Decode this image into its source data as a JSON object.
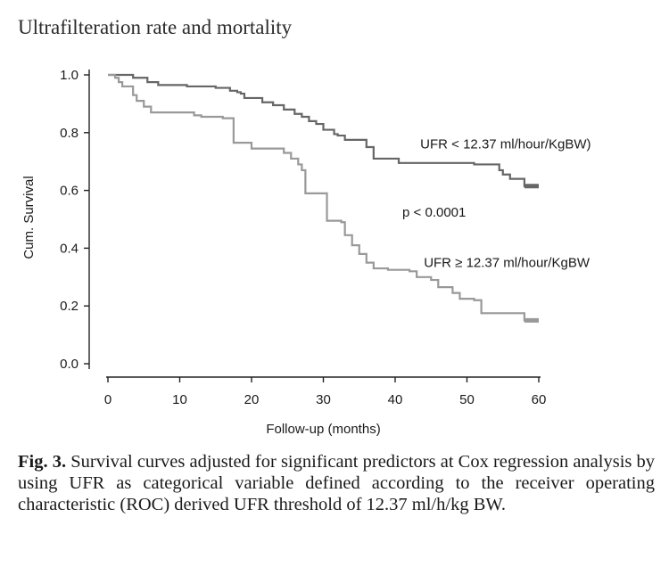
{
  "heading": "Ultrafilteration rate and mortality",
  "chart_data": {
    "type": "line",
    "title": "Ultrafilteration rate and mortality",
    "xlabel": "Follow-up (months)",
    "ylabel": "Cum. Survival",
    "xlim": [
      0,
      60
    ],
    "ylim": [
      0.0,
      1.0
    ],
    "xticks": [
      0,
      10,
      20,
      30,
      40,
      50,
      60
    ],
    "yticks": [
      0.0,
      0.2,
      0.4,
      0.6,
      0.8,
      1.0
    ],
    "xtick_labels": [
      "0",
      "10",
      "20",
      "30",
      "40",
      "50",
      "60"
    ],
    "ytick_labels": [
      "0.0",
      "0.2",
      "0.4",
      "0.6",
      "0.8",
      "1.0"
    ],
    "grid": false,
    "series": [
      {
        "name": "UFR < 12.37 ml/hour/KgBW)",
        "color": "#666666",
        "step": true,
        "points": [
          [
            0,
            1.0
          ],
          [
            3.5,
            0.99
          ],
          [
            5.5,
            0.975
          ],
          [
            7,
            0.965
          ],
          [
            11,
            0.96
          ],
          [
            15,
            0.955
          ],
          [
            17,
            0.945
          ],
          [
            18,
            0.94
          ],
          [
            18.5,
            0.935
          ],
          [
            19,
            0.92
          ],
          [
            21.5,
            0.905
          ],
          [
            23,
            0.895
          ],
          [
            24.5,
            0.88
          ],
          [
            26,
            0.865
          ],
          [
            27,
            0.855
          ],
          [
            28,
            0.84
          ],
          [
            29,
            0.83
          ],
          [
            30,
            0.81
          ],
          [
            31.5,
            0.795
          ],
          [
            32,
            0.79
          ],
          [
            33,
            0.775
          ],
          [
            35,
            0.775
          ],
          [
            36,
            0.75
          ],
          [
            37,
            0.71
          ],
          [
            40,
            0.71
          ],
          [
            40.5,
            0.695
          ],
          [
            50,
            0.695
          ],
          [
            51,
            0.69
          ],
          [
            54,
            0.69
          ],
          [
            54.5,
            0.67
          ],
          [
            55,
            0.655
          ],
          [
            56,
            0.64
          ],
          [
            57,
            0.64
          ],
          [
            58,
            0.615
          ],
          [
            60,
            0.615
          ]
        ]
      },
      {
        "name": "UFR ≥ 12.37 ml/hour/KgBW",
        "color": "#999999",
        "step": true,
        "points": [
          [
            0,
            1.0
          ],
          [
            1,
            0.99
          ],
          [
            1.5,
            0.975
          ],
          [
            2,
            0.96
          ],
          [
            3.5,
            0.93
          ],
          [
            4,
            0.91
          ],
          [
            5,
            0.89
          ],
          [
            6,
            0.87
          ],
          [
            12,
            0.86
          ],
          [
            13,
            0.855
          ],
          [
            16,
            0.85
          ],
          [
            17.5,
            0.765
          ],
          [
            20,
            0.745
          ],
          [
            24,
            0.745
          ],
          [
            24.5,
            0.73
          ],
          [
            25.5,
            0.71
          ],
          [
            26.5,
            0.69
          ],
          [
            27,
            0.67
          ],
          [
            27.5,
            0.59
          ],
          [
            30,
            0.59
          ],
          [
            30.5,
            0.495
          ],
          [
            32.5,
            0.49
          ],
          [
            33,
            0.445
          ],
          [
            34,
            0.41
          ],
          [
            35,
            0.38
          ],
          [
            36,
            0.35
          ],
          [
            37,
            0.33
          ],
          [
            39,
            0.325
          ],
          [
            42,
            0.32
          ],
          [
            43,
            0.3
          ],
          [
            45,
            0.29
          ],
          [
            46,
            0.265
          ],
          [
            48,
            0.245
          ],
          [
            49,
            0.225
          ],
          [
            51,
            0.22
          ],
          [
            52,
            0.175
          ],
          [
            57,
            0.175
          ],
          [
            58,
            0.15
          ],
          [
            60,
            0.15
          ]
        ]
      }
    ],
    "annotations": [
      {
        "text": "UFR < 12.37 ml/hour/KgBW)",
        "x": 43.5,
        "y": 0.745
      },
      {
        "text": "p < 0.0001",
        "x": 41,
        "y": 0.51
      },
      {
        "text": "UFR ≥ 12.37 ml/hour/KgBW",
        "x": 44,
        "y": 0.335
      }
    ]
  },
  "caption": {
    "label": "Fig. 3.",
    "text": " Survival curves adjusted for significant predictors at Cox regression analysis by using UFR as categorical variable defined according to the receiver operating characteristic (ROC) derived UFR threshold of 12.37 ml/h/kg BW."
  }
}
